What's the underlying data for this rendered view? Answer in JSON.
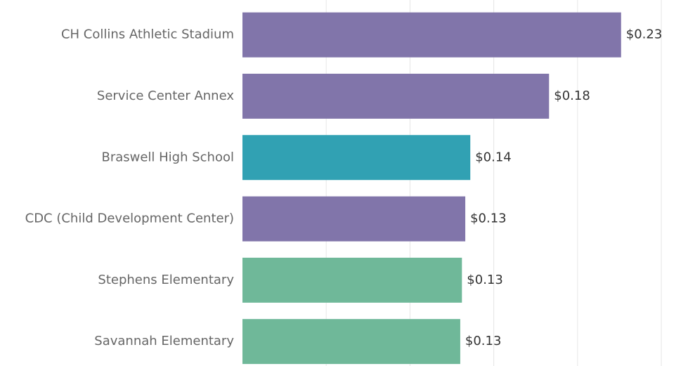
{
  "chart_data": {
    "type": "bar",
    "orientation": "horizontal",
    "categories": [
      "CH Collins Athletic Stadium",
      "Service Center Annex",
      "Braswell High School",
      "CDC (Child Development Center)",
      "Stephens Elementary",
      "Savannah Elementary"
    ],
    "values": [
      0.226,
      0.183,
      0.136,
      0.133,
      0.131,
      0.13
    ],
    "value_labels": [
      "$0.23",
      "$0.18",
      "$0.14",
      "$0.13",
      "$0.13",
      "$0.13"
    ],
    "colors": [
      "#8175aa",
      "#8175aa",
      "#31a1b3",
      "#8175aa",
      "#6fb899",
      "#6fb899"
    ],
    "xlim": [
      0,
      0.25
    ],
    "gridlines": [
      0.05,
      0.1,
      0.15,
      0.2,
      0.25
    ],
    "grid": true,
    "title": "",
    "xlabel": "",
    "ylabel": ""
  }
}
